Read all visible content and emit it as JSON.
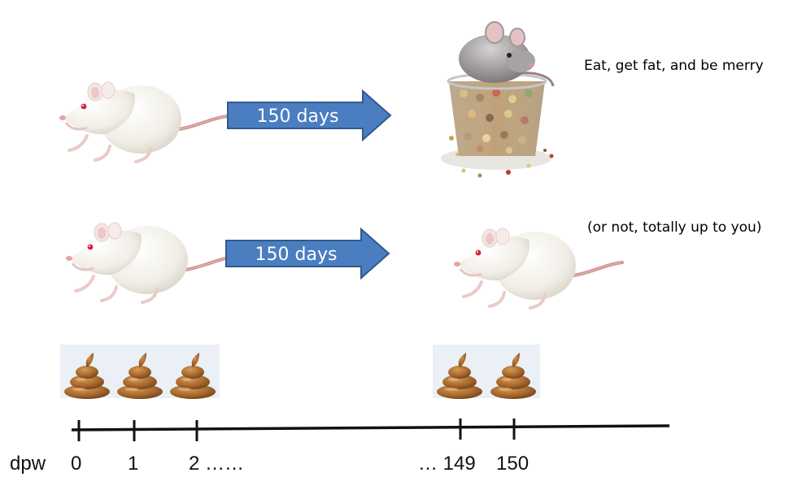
{
  "arrows": [
    {
      "label": "150 days"
    },
    {
      "label": "150 days"
    }
  ],
  "captions": {
    "top": "Eat, get fat, and be merry",
    "bottom": "(or not, totally up to you)"
  },
  "timeline": {
    "unit_label": "dpw",
    "ticks": [
      "0",
      "1",
      "2 ……",
      "… 149",
      "150"
    ]
  },
  "colors": {
    "arrow_fill": "#4a7ec0",
    "arrow_stroke": "#2f5a8f",
    "rat_body": "#f4f1ea",
    "rat_tail": "#c98f88",
    "rat_eye": "#d3233a",
    "poop": "#a0652a",
    "poop_panel": "#eaf0f5",
    "mouse_body": "#9c999b"
  },
  "icons": [
    "rat-icon",
    "mouse-on-seed-bowl-icon",
    "poop-icon"
  ]
}
